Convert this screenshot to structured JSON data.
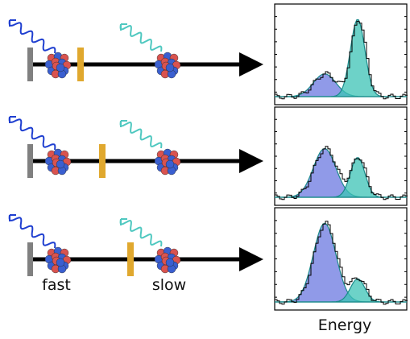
{
  "labels": {
    "fast": "fast",
    "slow": "slow"
  },
  "x_axis_label": "Energy"
}
